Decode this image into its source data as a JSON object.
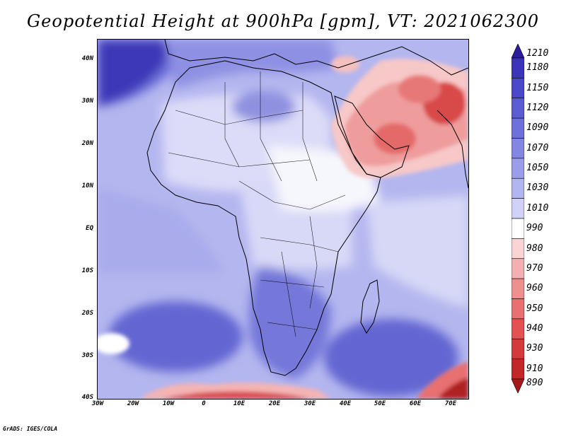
{
  "title": "Geopotential Height at 900hPa [gpm], VT: 2021062300",
  "credit": "GrADS: IGES/COLA",
  "lat_labels": [
    "40N",
    "30N",
    "20N",
    "10N",
    "EQ",
    "10S",
    "20S",
    "30S",
    "40S"
  ],
  "lon_labels": [
    "30W",
    "20W",
    "10W",
    "0",
    "10E",
    "20E",
    "30E",
    "40E",
    "50E",
    "60E",
    "70E"
  ],
  "colorbar": {
    "labels": [
      "1210",
      "1180",
      "1150",
      "1120",
      "1090",
      "1070",
      "1050",
      "1030",
      "1010",
      "990",
      "980",
      "970",
      "960",
      "950",
      "940",
      "930",
      "910",
      "890"
    ],
    "colors": [
      "#2a1e9e",
      "#3a34b8",
      "#4a48c8",
      "#5c5cd2",
      "#6e70dc",
      "#8486e3",
      "#9a9de9",
      "#b2b5f0",
      "#cfd1f7",
      "#ffffff",
      "#fad4d4",
      "#f4b0b0",
      "#ee9090",
      "#e87070",
      "#e25252",
      "#d43a3a",
      "#c22828",
      "#a81818"
    ]
  },
  "map": {
    "region": "Africa and surrounding oceans",
    "lat_range": [
      "40S",
      "45N"
    ],
    "lon_range": [
      "30W",
      "75E"
    ],
    "variable": "Geopotential Height",
    "level": "900hPa",
    "units": "gpm"
  }
}
